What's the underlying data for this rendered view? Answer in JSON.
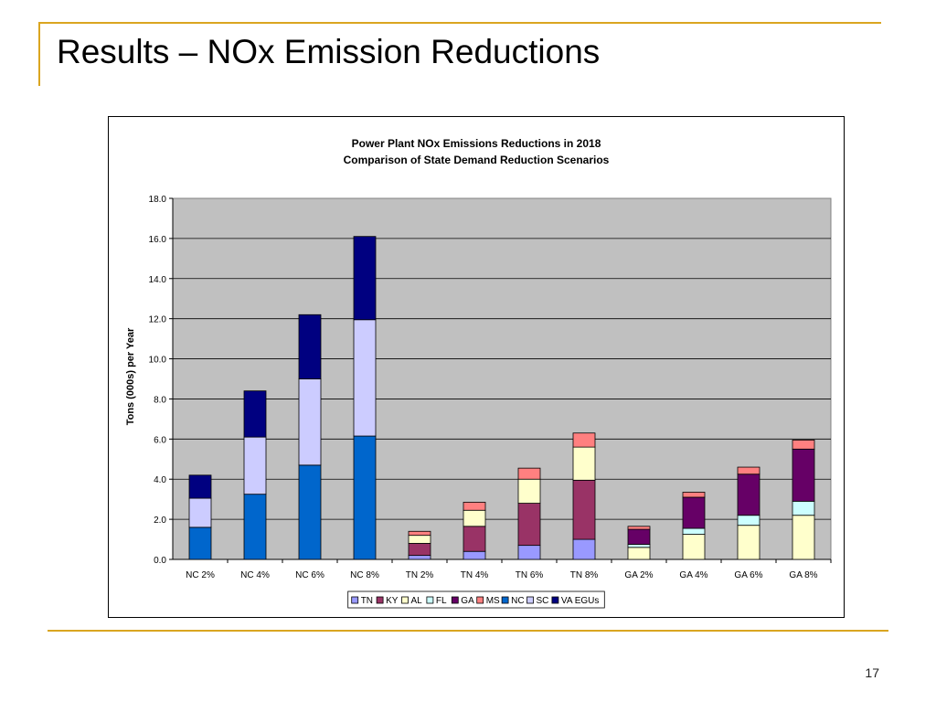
{
  "slide": {
    "title": "Results – NOx Emission Reductions",
    "page_number": "17",
    "accent_color": "#DAA520"
  },
  "chart_data": {
    "type": "bar",
    "stacked": true,
    "title": "Power Plant NOx Emissions Reductions in 2018",
    "subtitle": "Comparison of State Demand Reduction Scenarios",
    "xlabel": "",
    "ylabel": "Tons (000s) per Year",
    "ylim": [
      0,
      18
    ],
    "yticks": [
      "0.0",
      "2.0",
      "4.0",
      "6.0",
      "8.0",
      "10.0",
      "12.0",
      "14.0",
      "16.0",
      "18.0"
    ],
    "grid": true,
    "plot_background": "#C0C0C0",
    "legend_position": "bottom",
    "categories": [
      "NC 2%",
      "NC 4%",
      "NC 6%",
      "NC 8%",
      "TN 2%",
      "TN 4%",
      "TN 6%",
      "TN 8%",
      "GA 2%",
      "GA 4%",
      "GA 6%",
      "GA 8%"
    ],
    "series": [
      {
        "name": "TN",
        "color": "#9999FF",
        "values": [
          0,
          0,
          0,
          0,
          0.2,
          0.4,
          0.7,
          1.0,
          0,
          0,
          0,
          0
        ]
      },
      {
        "name": "KY",
        "color": "#993366",
        "values": [
          0,
          0,
          0,
          0,
          0.6,
          1.25,
          2.1,
          2.95,
          0,
          0,
          0,
          0
        ]
      },
      {
        "name": "AL",
        "color": "#FFFFCC",
        "values": [
          0,
          0,
          0,
          0,
          0.4,
          0.8,
          1.2,
          1.65,
          0.6,
          1.25,
          1.7,
          2.2
        ]
      },
      {
        "name": "FL",
        "color": "#CCFFFF",
        "values": [
          0,
          0,
          0,
          0,
          0,
          0,
          0,
          0,
          0.15,
          0.3,
          0.5,
          0.7
        ]
      },
      {
        "name": "GA",
        "color": "#660066",
        "values": [
          0,
          0,
          0,
          0,
          0,
          0,
          0,
          0,
          0.75,
          1.55,
          2.05,
          2.6
        ]
      },
      {
        "name": "MS",
        "color": "#FF8080",
        "values": [
          0,
          0,
          0,
          0,
          0.2,
          0.4,
          0.55,
          0.7,
          0.15,
          0.25,
          0.35,
          0.45
        ]
      },
      {
        "name": "NC",
        "color": "#0066CC",
        "values": [
          1.6,
          3.25,
          4.7,
          6.15,
          0,
          0,
          0,
          0,
          0,
          0,
          0,
          0
        ]
      },
      {
        "name": "SC",
        "color": "#CCCCFF",
        "values": [
          1.45,
          2.85,
          4.3,
          5.8,
          0,
          0,
          0,
          0,
          0,
          0,
          0,
          0
        ]
      },
      {
        "name": "VA EGUs",
        "color": "#000080",
        "values": [
          1.15,
          2.3,
          3.2,
          4.15,
          0,
          0,
          0,
          0,
          0,
          0,
          0,
          0
        ]
      }
    ]
  }
}
